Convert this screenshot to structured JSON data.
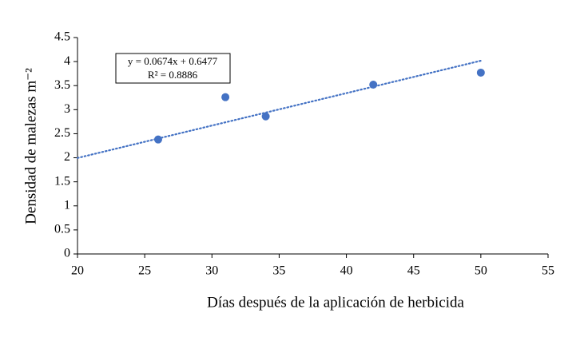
{
  "chart_data": {
    "type": "scatter",
    "x_label": "Días después de la aplicación de herbicida",
    "y_label": "Densidad de malezas m⁻²",
    "x": [
      26,
      31,
      34,
      42,
      50
    ],
    "values": [
      2.38,
      3.26,
      2.86,
      3.52,
      3.77
    ],
    "color": "#4472c4",
    "xlim": [
      20,
      55
    ],
    "xticks": [
      20,
      25,
      30,
      35,
      40,
      45,
      50,
      55
    ],
    "ylim": [
      0,
      4.5
    ],
    "yticks": [
      0,
      0.5,
      1,
      1.5,
      2,
      2.5,
      3,
      3.5,
      4,
      4.5
    ],
    "grid": false,
    "trendline": {
      "slope": 0.0674,
      "intercept": 0.6477
    },
    "annotations": [
      "y = 0.0674x + 0.6477",
      "R² = 0.8886"
    ]
  }
}
